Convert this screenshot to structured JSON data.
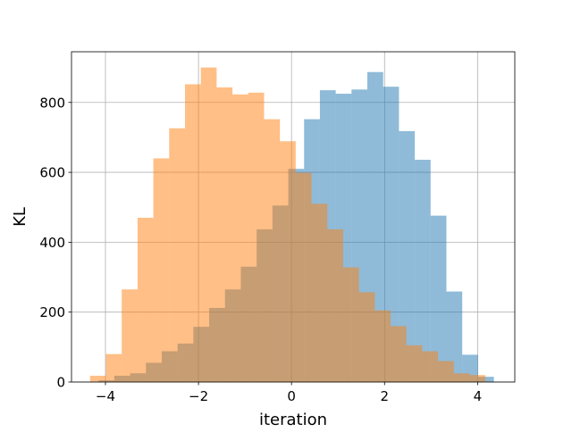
{
  "chart_data": {
    "type": "bar",
    "xlabel": "iteration",
    "ylabel": "KL",
    "xlim": [
      -4.73,
      4.8
    ],
    "ylim": [
      0,
      945
    ],
    "xticks": [
      -4,
      -2,
      0,
      2,
      4
    ],
    "xtick_labels": [
      "−4",
      "−2",
      "0",
      "2",
      "4"
    ],
    "yticks": [
      0,
      200,
      400,
      600,
      800
    ],
    "ytick_labels": [
      "0",
      "200",
      "400",
      "600",
      "800"
    ],
    "grid": true,
    "series": [
      {
        "color": "#1f77b4",
        "opacity": 0.5,
        "bin_edges": [
          -4.15,
          -3.81,
          -3.47,
          -3.13,
          -2.79,
          -2.45,
          -2.11,
          -1.77,
          -1.43,
          -1.09,
          -0.75,
          -0.41,
          -0.07,
          0.27,
          0.61,
          0.95,
          1.29,
          1.63,
          1.97,
          2.31,
          2.65,
          2.99,
          3.33,
          3.67,
          4.01,
          4.35
        ],
        "values": [
          5,
          18,
          25,
          55,
          88,
          110,
          158,
          212,
          265,
          330,
          437,
          505,
          610,
          752,
          835,
          825,
          837,
          887,
          845,
          718,
          636,
          476,
          259,
          78,
          15
        ]
      },
      {
        "color": "#ff7f0e",
        "opacity": 0.5,
        "bin_edges": [
          -4.33,
          -3.99,
          -3.65,
          -3.31,
          -2.97,
          -2.63,
          -2.29,
          -1.95,
          -1.61,
          -1.27,
          -0.93,
          -0.59,
          -0.25,
          0.09,
          0.43,
          0.77,
          1.11,
          1.45,
          1.79,
          2.13,
          2.47,
          2.81,
          3.15,
          3.49,
          3.83,
          4.17
        ],
        "values": [
          18,
          80,
          265,
          470,
          640,
          726,
          852,
          900,
          843,
          823,
          828,
          752,
          689,
          599,
          510,
          437,
          328,
          257,
          205,
          160,
          105,
          88,
          60,
          25,
          20
        ]
      }
    ]
  }
}
